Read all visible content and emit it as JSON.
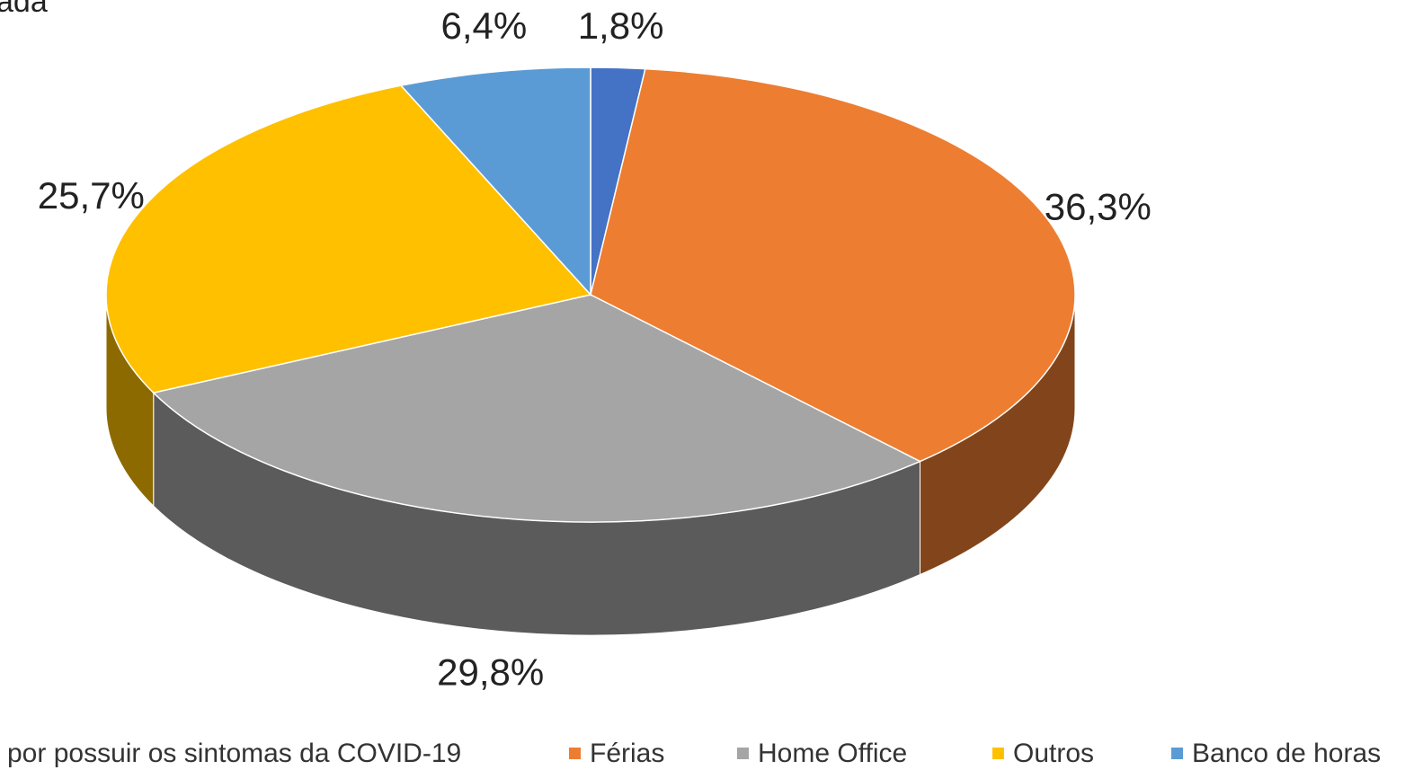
{
  "chart_data": {
    "type": "pie",
    "title": "ada",
    "categories": [
      "por possuir os sintomas da COVID-19",
      "Férias",
      "Home Office",
      "Outros",
      "Banco de horas"
    ],
    "values": [
      1.8,
      36.3,
      29.8,
      25.7,
      6.4
    ],
    "value_labels": [
      "1,8%",
      "36,3%",
      "29,8%",
      "25,7%",
      "6,4%"
    ],
    "colors": [
      "#4472c4",
      "#ed7d31",
      "#a5a5a5",
      "#ffc000",
      "#5b9bd5"
    ],
    "legend": "bottom"
  }
}
